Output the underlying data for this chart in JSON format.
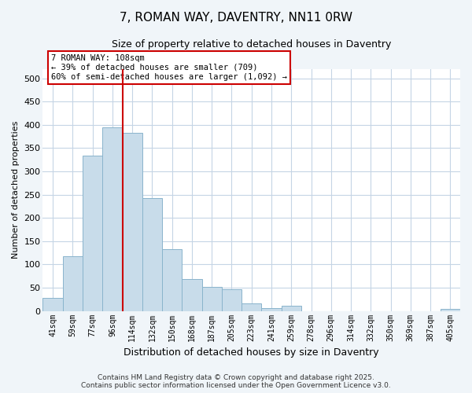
{
  "title": "7, ROMAN WAY, DAVENTRY, NN11 0RW",
  "subtitle": "Size of property relative to detached houses in Daventry",
  "xlabel": "Distribution of detached houses by size in Daventry",
  "ylabel": "Number of detached properties",
  "bar_labels": [
    "41sqm",
    "59sqm",
    "77sqm",
    "96sqm",
    "114sqm",
    "132sqm",
    "150sqm",
    "168sqm",
    "187sqm",
    "205sqm",
    "223sqm",
    "241sqm",
    "259sqm",
    "278sqm",
    "296sqm",
    "314sqm",
    "332sqm",
    "350sqm",
    "369sqm",
    "387sqm",
    "405sqm"
  ],
  "bar_values": [
    28,
    118,
    333,
    395,
    382,
    242,
    133,
    69,
    51,
    46,
    17,
    6,
    11,
    0,
    0,
    0,
    0,
    0,
    0,
    0,
    5
  ],
  "bar_color": "#c8dcea",
  "bar_edge_color": "#8ab4cc",
  "vline_position": 3.5,
  "vline_color": "#cc0000",
  "annotation_text_line1": "7 ROMAN WAY: 108sqm",
  "annotation_text_line2": "← 39% of detached houses are smaller (709)",
  "annotation_text_line3": "60% of semi-detached houses are larger (1,092) →",
  "annotation_box_edge_color": "#cc0000",
  "ylim": [
    0,
    520
  ],
  "yticks": [
    0,
    50,
    100,
    150,
    200,
    250,
    300,
    350,
    400,
    450,
    500
  ],
  "footer_line1": "Contains HM Land Registry data © Crown copyright and database right 2025.",
  "footer_line2": "Contains public sector information licensed under the Open Government Licence v3.0.",
  "bg_color": "#f0f5f9",
  "plot_bg_color": "#ffffff",
  "grid_color": "#c5d5e5"
}
